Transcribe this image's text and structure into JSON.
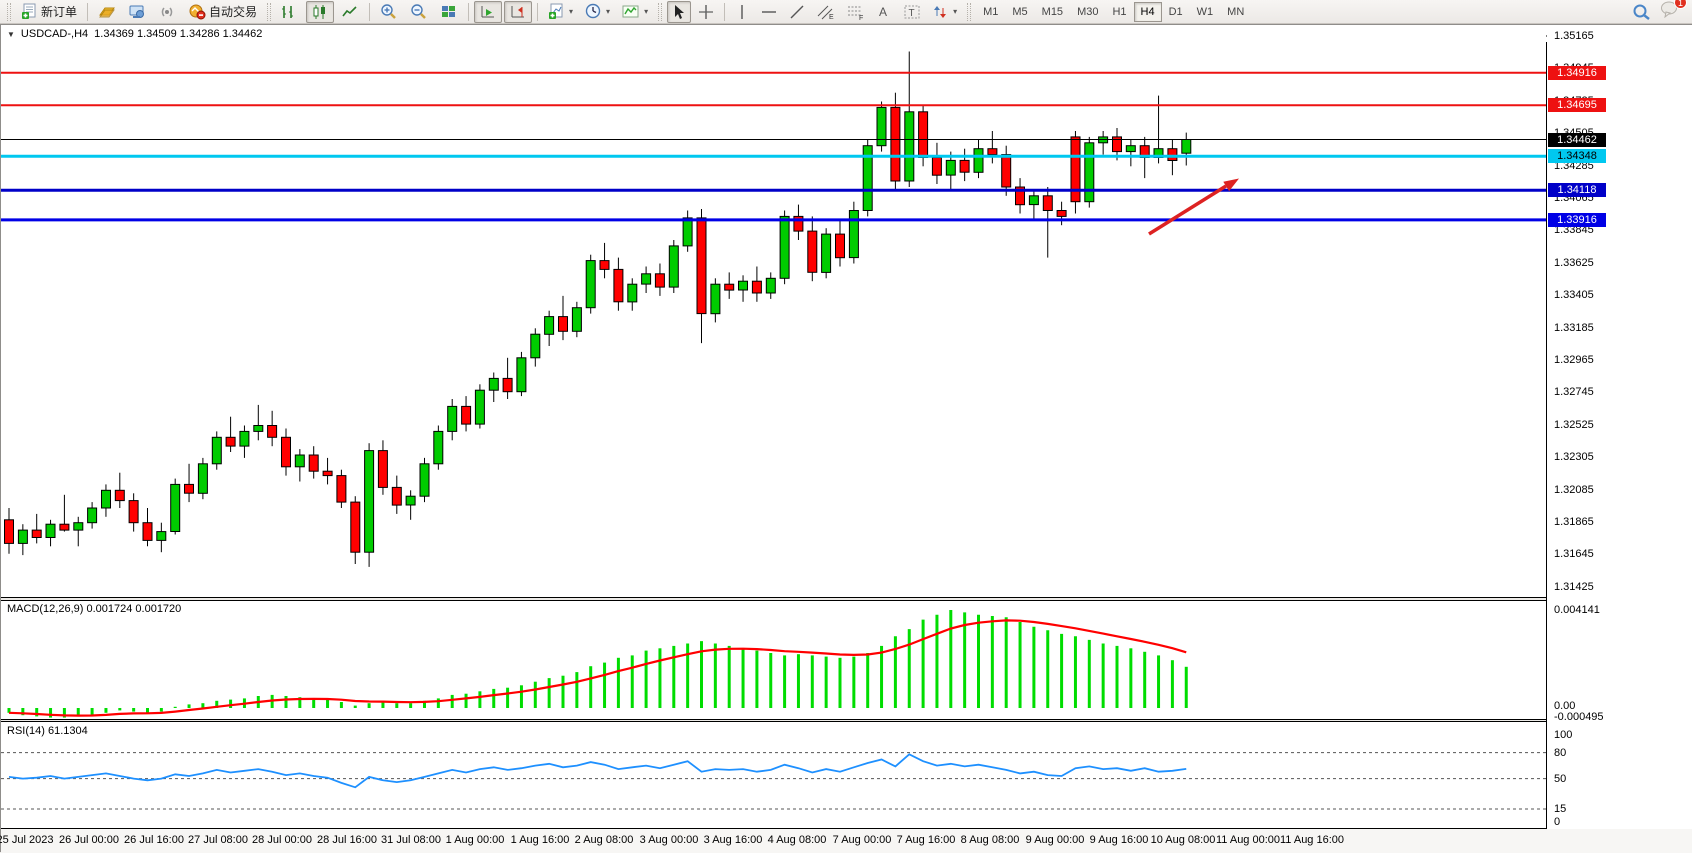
{
  "toolbar": {
    "new_order_label": "新订单",
    "autotrade_label": "自动交易",
    "timeframes": [
      "M1",
      "M5",
      "M15",
      "M30",
      "H1",
      "H4",
      "D1",
      "W1",
      "MN"
    ],
    "active_timeframe": "H4",
    "notification_count": "1",
    "icons": [
      "new-order-icon",
      "market-watch-icon",
      "navigator-icon",
      "signal-icon",
      "autotrade-icon",
      "bar-chart-icon",
      "candlestick-chart-icon",
      "line-chart-icon",
      "zoom-in-icon",
      "zoom-out-icon",
      "tile-windows-icon",
      "auto-scroll-icon",
      "chart-shift-icon",
      "new-chart-icon",
      "timeframe-clock-icon",
      "indicators-icon",
      "cursor-icon",
      "crosshair-icon",
      "vertical-line-icon",
      "horizontal-line-icon",
      "trendline-icon",
      "channel-icon",
      "fibonacci-icon",
      "text-icon",
      "text-label-icon",
      "shapes-icon",
      "search-icon",
      "chat-icon"
    ]
  },
  "window": {
    "title_symbol": "USDCAD-,H4",
    "title_ohlc": "1.34369 1.34509 1.34286 1.34462"
  },
  "indicator_labels": {
    "macd": "MACD(12,26,9) 0.001724 0.001720",
    "rsi": "RSI(14) 61.1304"
  },
  "chart_data": {
    "type": "candlestick",
    "symbol": "USDCAD",
    "timeframe": "H4",
    "current_bar": {
      "open": 1.34369,
      "high": 1.34509,
      "low": 1.34286,
      "close": 1.34462
    },
    "y_axis_ticks": [
      "1.35165",
      "1.34945",
      "1.34725",
      "1.34505",
      "1.34285",
      "1.34065",
      "1.33845",
      "1.33625",
      "1.33405",
      "1.33185",
      "1.32965",
      "1.32745",
      "1.32525",
      "1.32305",
      "1.32085",
      "1.31865",
      "1.31645",
      "1.31425"
    ],
    "x_axis_labels": [
      "25 Jul 2023",
      "26 Jul 00:00",
      "26 Jul 16:00",
      "27 Jul 08:00",
      "28 Jul 00:00",
      "28 Jul 16:00",
      "31 Jul 08:00",
      "1 Aug 00:00",
      "1 Aug 16:00",
      "2 Aug 08:00",
      "3 Aug 00:00",
      "3 Aug 16:00",
      "4 Aug 08:00",
      "7 Aug 00:00",
      "7 Aug 16:00",
      "8 Aug 08:00",
      "9 Aug 00:00",
      "9 Aug 16:00",
      "10 Aug 08:00",
      "11 Aug 00:00",
      "11 Aug 16:00"
    ],
    "price_levels": [
      {
        "price": 1.34916,
        "label": "1.34916",
        "line_color": "#ee1111",
        "badge_bg": "#ee1111",
        "badge_fg": "#ffffff",
        "line_width": 2
      },
      {
        "price": 1.34695,
        "label": "1.34695",
        "line_color": "#ee1111",
        "badge_bg": "#ee1111",
        "badge_fg": "#ffffff",
        "line_width": 2
      },
      {
        "price": 1.34462,
        "label": "1.34462",
        "line_color": "#000000",
        "badge_bg": "#000000",
        "badge_fg": "#ffffff",
        "line_width": 1
      },
      {
        "price": 1.34348,
        "label": "1.34348",
        "line_color": "#00c8f0",
        "badge_bg": "#00c8f0",
        "badge_fg": "#000000",
        "line_width": 3
      },
      {
        "price": 1.34118,
        "label": "1.34118",
        "line_color": "#0000c8",
        "badge_bg": "#0000c8",
        "badge_fg": "#ffffff",
        "line_width": 3
      },
      {
        "price": 1.33916,
        "label": "1.33916",
        "line_color": "#0000e6",
        "badge_bg": "#0000e6",
        "badge_fg": "#ffffff",
        "line_width": 3
      }
    ],
    "style": {
      "up_color": "#00cc00",
      "down_color": "#ff0000",
      "wick_color": "#000000",
      "background": "#ffffff"
    },
    "candles_ohlc": [
      [
        1.3188,
        1.3196,
        1.3165,
        1.3172
      ],
      [
        1.3172,
        1.3185,
        1.3164,
        1.3181
      ],
      [
        1.3181,
        1.3192,
        1.3172,
        1.3176
      ],
      [
        1.3176,
        1.3188,
        1.317,
        1.3185
      ],
      [
        1.3185,
        1.3205,
        1.318,
        1.3181
      ],
      [
        1.3181,
        1.319,
        1.317,
        1.3186
      ],
      [
        1.3186,
        1.32,
        1.3182,
        1.3196
      ],
      [
        1.3196,
        1.3212,
        1.319,
        1.3208
      ],
      [
        1.3208,
        1.322,
        1.3196,
        1.3201
      ],
      [
        1.3201,
        1.3206,
        1.318,
        1.3186
      ],
      [
        1.3186,
        1.3196,
        1.317,
        1.3174
      ],
      [
        1.3174,
        1.3186,
        1.3166,
        1.318
      ],
      [
        1.318,
        1.3216,
        1.3178,
        1.3212
      ],
      [
        1.3212,
        1.3226,
        1.32,
        1.3206
      ],
      [
        1.3206,
        1.323,
        1.3202,
        1.3226
      ],
      [
        1.3226,
        1.3248,
        1.3222,
        1.3244
      ],
      [
        1.3244,
        1.3258,
        1.3234,
        1.3238
      ],
      [
        1.3238,
        1.3252,
        1.323,
        1.3248
      ],
      [
        1.3248,
        1.3266,
        1.3242,
        1.3252
      ],
      [
        1.3252,
        1.3262,
        1.3238,
        1.3244
      ],
      [
        1.3244,
        1.325,
        1.3218,
        1.3224
      ],
      [
        1.3224,
        1.3236,
        1.3214,
        1.3232
      ],
      [
        1.3232,
        1.3238,
        1.3216,
        1.3221
      ],
      [
        1.3221,
        1.323,
        1.3212,
        1.3218
      ],
      [
        1.3218,
        1.3222,
        1.3196,
        1.32
      ],
      [
        1.32,
        1.3204,
        1.3158,
        1.3166
      ],
      [
        1.3166,
        1.324,
        1.3156,
        1.3235
      ],
      [
        1.3235,
        1.3242,
        1.3205,
        1.321
      ],
      [
        1.321,
        1.3218,
        1.3192,
        1.3198
      ],
      [
        1.3198,
        1.3208,
        1.3188,
        1.3204
      ],
      [
        1.3204,
        1.323,
        1.32,
        1.3226
      ],
      [
        1.3226,
        1.3252,
        1.3222,
        1.3248
      ],
      [
        1.3248,
        1.327,
        1.3242,
        1.3265
      ],
      [
        1.3265,
        1.3272,
        1.3248,
        1.3253
      ],
      [
        1.3253,
        1.328,
        1.325,
        1.3276
      ],
      [
        1.3276,
        1.3288,
        1.3268,
        1.3284
      ],
      [
        1.3284,
        1.3298,
        1.327,
        1.3275
      ],
      [
        1.3275,
        1.3302,
        1.3272,
        1.3298
      ],
      [
        1.3298,
        1.3318,
        1.3292,
        1.3314
      ],
      [
        1.3314,
        1.333,
        1.3306,
        1.3326
      ],
      [
        1.3326,
        1.334,
        1.331,
        1.3316
      ],
      [
        1.3316,
        1.3336,
        1.3312,
        1.3332
      ],
      [
        1.3332,
        1.3368,
        1.3328,
        1.3364
      ],
      [
        1.3364,
        1.3376,
        1.3352,
        1.3358
      ],
      [
        1.3358,
        1.3366,
        1.333,
        1.3336
      ],
      [
        1.3336,
        1.3352,
        1.333,
        1.3348
      ],
      [
        1.3348,
        1.336,
        1.3342,
        1.3355
      ],
      [
        1.3355,
        1.3362,
        1.334,
        1.3346
      ],
      [
        1.3346,
        1.3378,
        1.3342,
        1.3374
      ],
      [
        1.3374,
        1.3398,
        1.337,
        1.3393
      ],
      [
        1.3393,
        1.3399,
        1.3308,
        1.3328
      ],
      [
        1.3328,
        1.3352,
        1.3322,
        1.3348
      ],
      [
        1.3348,
        1.3356,
        1.3338,
        1.3344
      ],
      [
        1.3344,
        1.3354,
        1.3336,
        1.335
      ],
      [
        1.335,
        1.336,
        1.3336,
        1.3342
      ],
      [
        1.3342,
        1.3356,
        1.3338,
        1.3352
      ],
      [
        1.3352,
        1.3398,
        1.3348,
        1.3394
      ],
      [
        1.3394,
        1.3402,
        1.3378,
        1.3384
      ],
      [
        1.3384,
        1.3394,
        1.335,
        1.3356
      ],
      [
        1.3356,
        1.3386,
        1.3352,
        1.3382
      ],
      [
        1.3382,
        1.3392,
        1.336,
        1.3366
      ],
      [
        1.3366,
        1.3404,
        1.3362,
        1.3398
      ],
      [
        1.3398,
        1.3446,
        1.3394,
        1.3442
      ],
      [
        1.3442,
        1.3472,
        1.3438,
        1.3468
      ],
      [
        1.3468,
        1.3478,
        1.3412,
        1.3418
      ],
      [
        1.3418,
        1.3506,
        1.3414,
        1.3465
      ],
      [
        1.3465,
        1.347,
        1.3428,
        1.3434
      ],
      [
        1.3434,
        1.3444,
        1.3416,
        1.3422
      ],
      [
        1.3422,
        1.3438,
        1.3412,
        1.3432
      ],
      [
        1.3432,
        1.344,
        1.3418,
        1.3424
      ],
      [
        1.3424,
        1.3446,
        1.342,
        1.344
      ],
      [
        1.344,
        1.3452,
        1.343,
        1.3436
      ],
      [
        1.3436,
        1.3442,
        1.3408,
        1.3414
      ],
      [
        1.3414,
        1.342,
        1.3396,
        1.3402
      ],
      [
        1.3402,
        1.3412,
        1.3392,
        1.3408
      ],
      [
        1.3408,
        1.3414,
        1.3366,
        1.3398
      ],
      [
        1.3398,
        1.3404,
        1.3388,
        1.3394
      ],
      [
        1.3448,
        1.3452,
        1.3396,
        1.3404
      ],
      [
        1.3404,
        1.3448,
        1.34,
        1.3444
      ],
      [
        1.3444,
        1.3452,
        1.3436,
        1.3448
      ],
      [
        1.3448,
        1.3454,
        1.3432,
        1.3438
      ],
      [
        1.3438,
        1.3446,
        1.3428,
        1.3442
      ],
      [
        1.3442,
        1.3448,
        1.342,
        1.3434
      ],
      [
        1.3434,
        1.3476,
        1.343,
        1.344
      ],
      [
        1.344,
        1.3446,
        1.3422,
        1.3432
      ],
      [
        1.34369,
        1.34509,
        1.34286,
        1.34462
      ]
    ],
    "indicators": [
      {
        "name": "MACD",
        "label": "MACD(12,26,9)",
        "values": "0.001724 0.001720",
        "y_ticks": [
          "0.004141",
          "0.00",
          "-0.000495"
        ],
        "histogram_color": "#00dd00",
        "signal_color": "#ff0000",
        "histogram_x1e4": [
          -2,
          -3,
          -3.5,
          -4,
          -4,
          -3.5,
          -3,
          -2,
          -1,
          -1.5,
          -2,
          -1.5,
          0.5,
          1.5,
          2,
          3,
          3.5,
          4,
          5,
          5.5,
          5,
          4.5,
          4,
          3.5,
          2.5,
          1,
          2,
          2.5,
          2,
          2,
          3,
          4,
          5.5,
          6,
          7,
          8,
          8.5,
          9.5,
          11,
          12.5,
          13.5,
          15,
          17.5,
          19,
          21,
          22,
          24,
          25,
          26,
          27,
          28,
          27,
          26,
          25,
          24,
          23,
          22,
          22.5,
          22,
          21.5,
          21,
          21.5,
          23,
          26,
          30,
          33,
          37,
          39,
          41,
          40,
          39,
          38.5,
          38,
          36,
          34,
          32.5,
          31,
          30,
          28.5,
          27,
          26,
          25,
          23.5,
          22,
          20,
          17.24
        ]
      },
      {
        "name": "RSI",
        "label": "RSI(14)",
        "value": "61.1304",
        "levels": [
          100,
          80,
          50,
          15,
          0
        ],
        "line_color": "#1e90ff",
        "values": [
          52,
          50,
          51,
          53,
          50,
          52,
          54,
          56,
          53,
          50,
          48,
          50,
          55,
          53,
          56,
          60,
          57,
          59,
          61,
          58,
          54,
          56,
          53,
          51,
          45,
          40,
          52,
          48,
          46,
          48,
          52,
          56,
          60,
          57,
          61,
          63,
          60,
          62,
          65,
          67,
          63,
          65,
          69,
          66,
          61,
          63,
          65,
          62,
          66,
          70,
          58,
          61,
          60,
          61,
          58,
          60,
          66,
          62,
          57,
          61,
          58,
          63,
          68,
          72,
          64,
          78,
          70,
          65,
          67,
          64,
          66,
          63,
          60,
          56,
          58,
          54,
          53,
          62,
          64,
          61,
          62,
          59,
          62,
          58,
          59,
          61.13
        ]
      }
    ],
    "annotation_arrow": {
      "color": "#dd2222"
    }
  }
}
